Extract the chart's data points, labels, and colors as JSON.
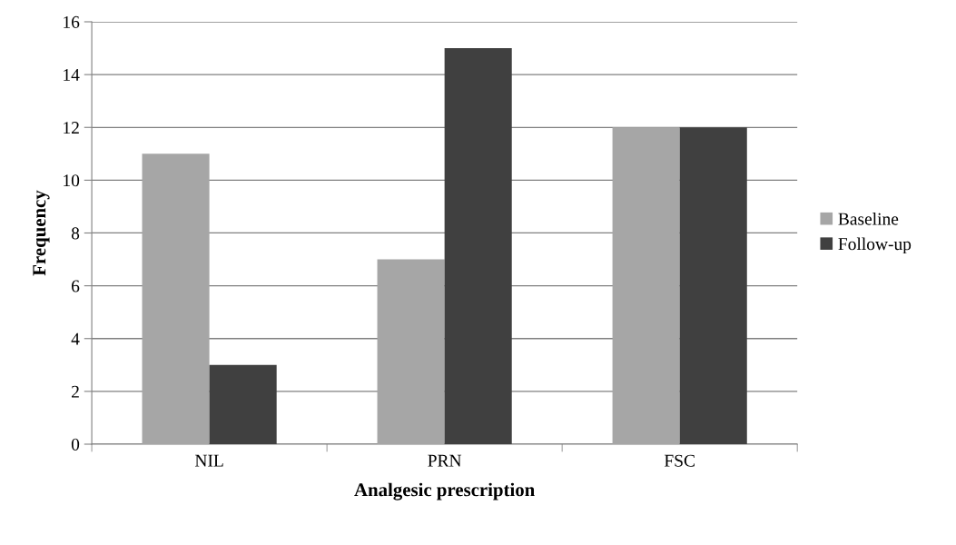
{
  "chart_data": {
    "type": "bar",
    "xlabel": "Analgesic prescription",
    "ylabel": "Frequency",
    "categories": [
      "NIL",
      "PRN",
      "FSC"
    ],
    "series": [
      {
        "name": "Baseline",
        "color": "#a6a6a6",
        "values": [
          11,
          7,
          12
        ]
      },
      {
        "name": "Follow-up",
        "color": "#404040",
        "values": [
          3,
          15,
          12
        ]
      }
    ],
    "ylim": [
      0,
      16
    ],
    "yticks": [
      0,
      2,
      4,
      6,
      8,
      10,
      12,
      14,
      16
    ],
    "grid": "y",
    "legend": "right"
  }
}
